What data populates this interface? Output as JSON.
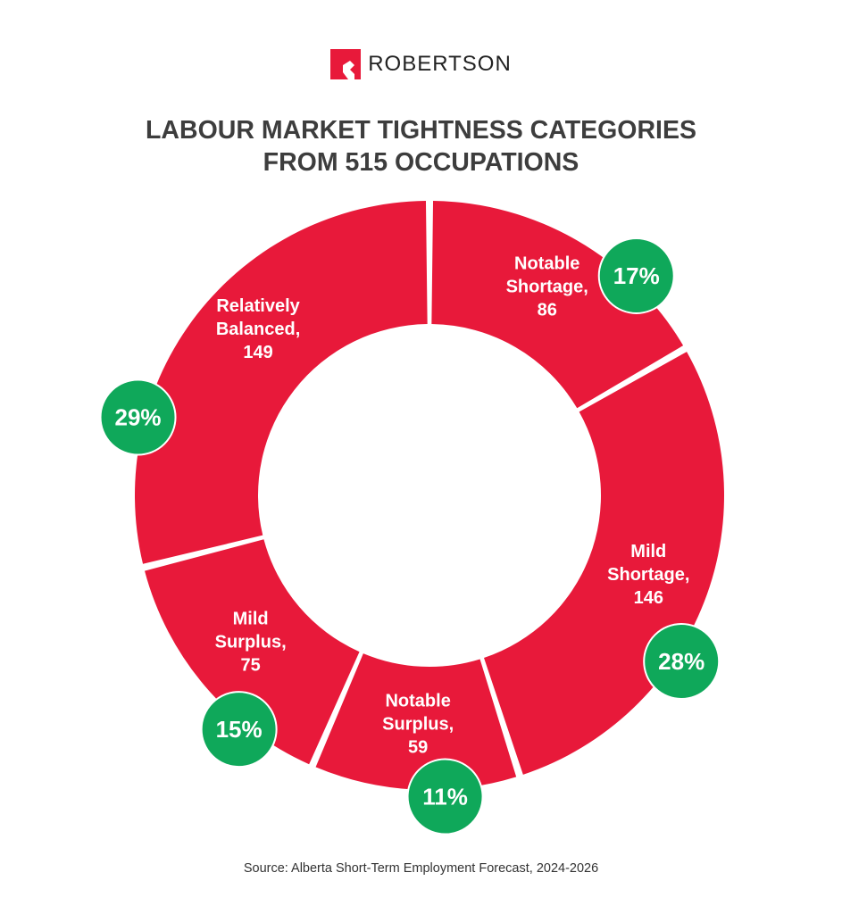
{
  "brand": {
    "name": "ROBERTSON",
    "logo_icon": "robertson-r-logo-icon"
  },
  "colors": {
    "slice": "#e8193a",
    "badge": "#0fa85a",
    "text_dark": "#3d3d3d",
    "label": "#ffffff",
    "brand_red": "#e8193a"
  },
  "source": "Source: Alberta Short-Term Employment Forecast, 2024-2026",
  "chart_data": {
    "type": "pie",
    "donut": true,
    "title": [
      "LABOUR MARKET TIGHTNESS CATEGORIES",
      "FROM 515 OCCUPATIONS"
    ],
    "total": 515,
    "slices": [
      {
        "name": "notable-shortage",
        "label": [
          "Notable",
          "Shortage,",
          "86"
        ],
        "value": 86,
        "percent": "17%"
      },
      {
        "name": "mild-shortage",
        "label": [
          "Mild",
          "Shortage,",
          "146"
        ],
        "value": 146,
        "percent": "28%"
      },
      {
        "name": "notable-surplus",
        "label": [
          "Notable",
          "Surplus,",
          "59"
        ],
        "value": 59,
        "percent": "11%"
      },
      {
        "name": "mild-surplus",
        "label": [
          "Mild",
          "Surplus,",
          "75"
        ],
        "value": 75,
        "percent": "15%"
      },
      {
        "name": "relatively-balanced",
        "label": [
          "Relatively",
          "Balanced,",
          "149"
        ],
        "value": 149,
        "percent": "29%"
      }
    ]
  }
}
